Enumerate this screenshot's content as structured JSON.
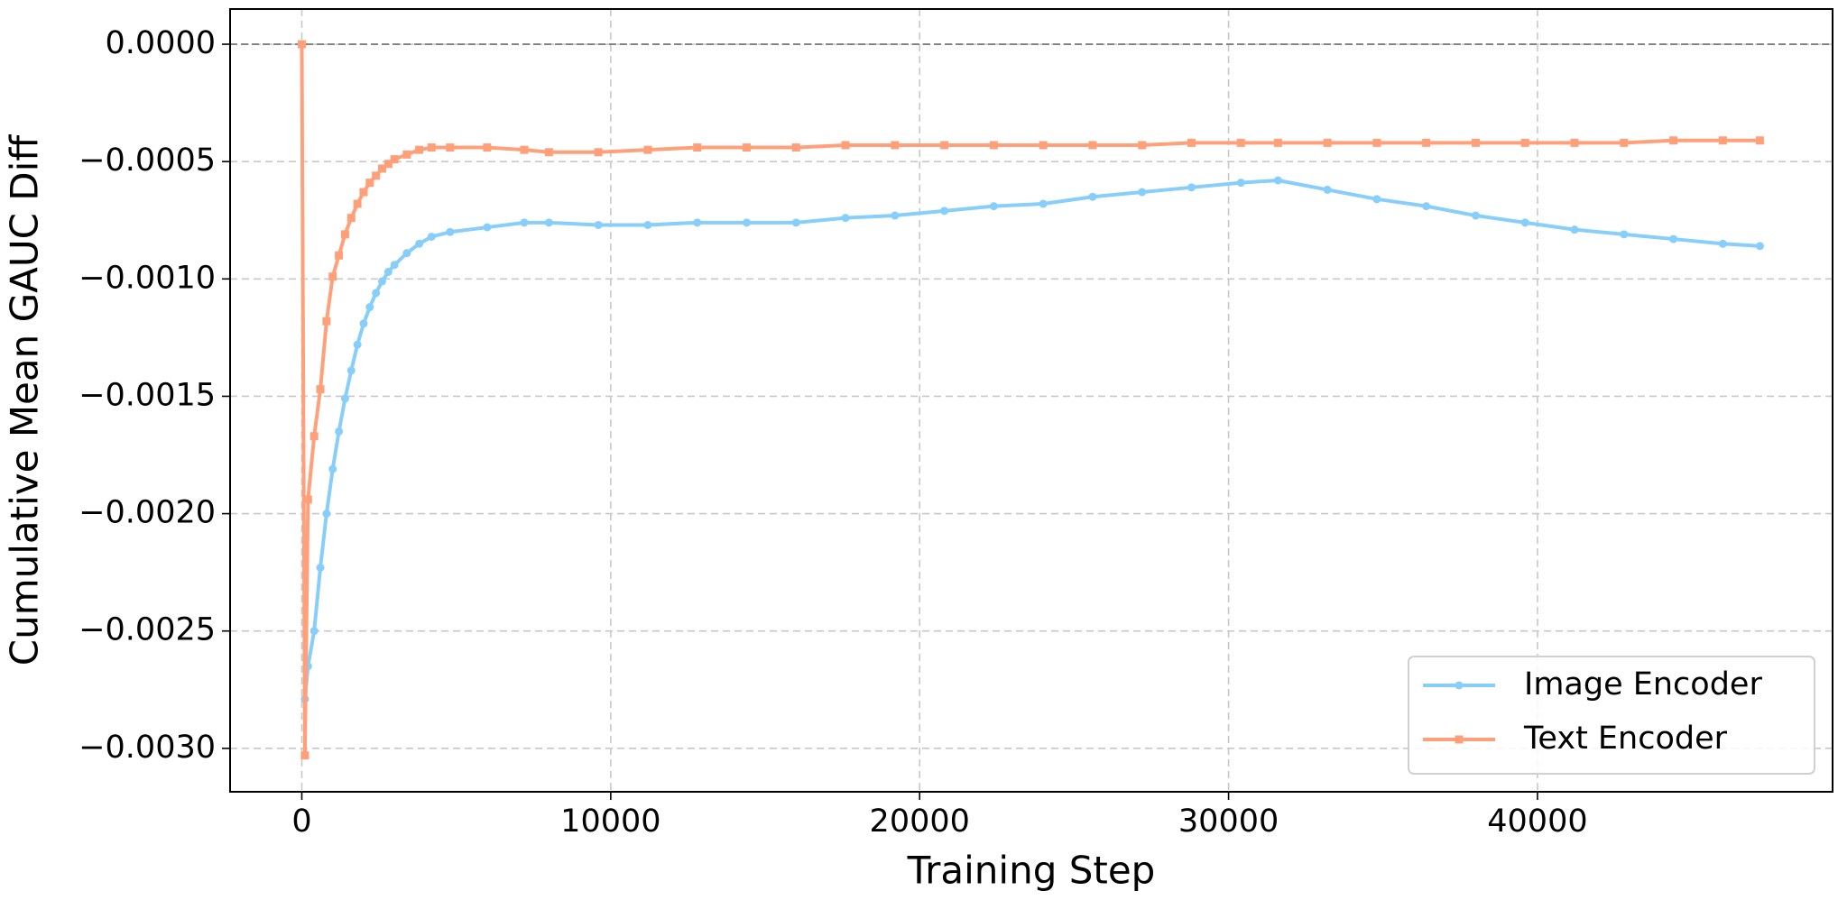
{
  "chart_data": {
    "type": "line",
    "xlabel": "Training Step",
    "ylabel": "Cumulative Mean GAUC Diff",
    "x": [
      0,
      100,
      200,
      400,
      600,
      800,
      1000,
      1200,
      1400,
      1600,
      1800,
      2000,
      2200,
      2400,
      2600,
      2800,
      3000,
      3400,
      3800,
      4200,
      4800,
      6000,
      7200,
      8000,
      9600,
      11200,
      12800,
      14400,
      16000,
      17600,
      19200,
      20800,
      22400,
      24000,
      25600,
      27200,
      28800,
      30400,
      31600,
      33200,
      34800,
      36400,
      38000,
      39600,
      41200,
      42800,
      44400,
      46000,
      47200
    ],
    "series": [
      {
        "name": "Image Encoder",
        "color": "#87cefa",
        "marker": "circle",
        "values": [
          null,
          -0.00279,
          -0.00265,
          -0.0025,
          -0.00223,
          -0.002,
          -0.00181,
          -0.00165,
          -0.00151,
          -0.00139,
          -0.00128,
          -0.00119,
          -0.00112,
          -0.00106,
          -0.00101,
          -0.00097,
          -0.00094,
          -0.00089,
          -0.00085,
          -0.00082,
          -0.0008,
          -0.00078,
          -0.00076,
          -0.00076,
          -0.00077,
          -0.00077,
          -0.00076,
          -0.00076,
          -0.00076,
          -0.00074,
          -0.00073,
          -0.00071,
          -0.00069,
          -0.00068,
          -0.00065,
          -0.00063,
          -0.00061,
          -0.00059,
          -0.00058,
          -0.00062,
          -0.00066,
          -0.00069,
          -0.00073,
          -0.00076,
          -0.00079,
          -0.00081,
          -0.00083,
          -0.00085,
          -0.00086
        ]
      },
      {
        "name": "Text Encoder",
        "color": "#ffa07a",
        "marker": "square",
        "values": [
          0,
          -0.00303,
          -0.00194,
          -0.00167,
          -0.00147,
          -0.00118,
          -0.00099,
          -0.0009,
          -0.00081,
          -0.00074,
          -0.00068,
          -0.00063,
          -0.00059,
          -0.00056,
          -0.00053,
          -0.00051,
          -0.00049,
          -0.00047,
          -0.00045,
          -0.00044,
          -0.00044,
          -0.00044,
          -0.00045,
          -0.00046,
          -0.00046,
          -0.00045,
          -0.00044,
          -0.00044,
          -0.00044,
          -0.00043,
          -0.00043,
          -0.00043,
          -0.00043,
          -0.00043,
          -0.00043,
          -0.00043,
          -0.00042,
          -0.00042,
          -0.00042,
          -0.00042,
          -0.00042,
          -0.00042,
          -0.00042,
          -0.00042,
          -0.00042,
          -0.00042,
          -0.00041,
          -0.00041,
          -0.00041
        ]
      }
    ],
    "xlim": [
      -2322,
      49553
    ],
    "ylim": [
      -0.003185,
      0.00015
    ],
    "xticks": [
      0,
      10000,
      20000,
      30000,
      40000
    ],
    "yticks": [
      {
        "value": -0.003,
        "label": "−0.0030"
      },
      {
        "value": -0.0025,
        "label": "−0.0025"
      },
      {
        "value": -0.002,
        "label": "−0.0020"
      },
      {
        "value": -0.0015,
        "label": "−0.0015"
      },
      {
        "value": -0.001,
        "label": "−0.0010"
      },
      {
        "value": -0.0005,
        "label": "−0.0005"
      },
      {
        "value": 0,
        "label": "0.0000"
      }
    ],
    "hline": 0,
    "grid": true,
    "legend": "lower right"
  }
}
